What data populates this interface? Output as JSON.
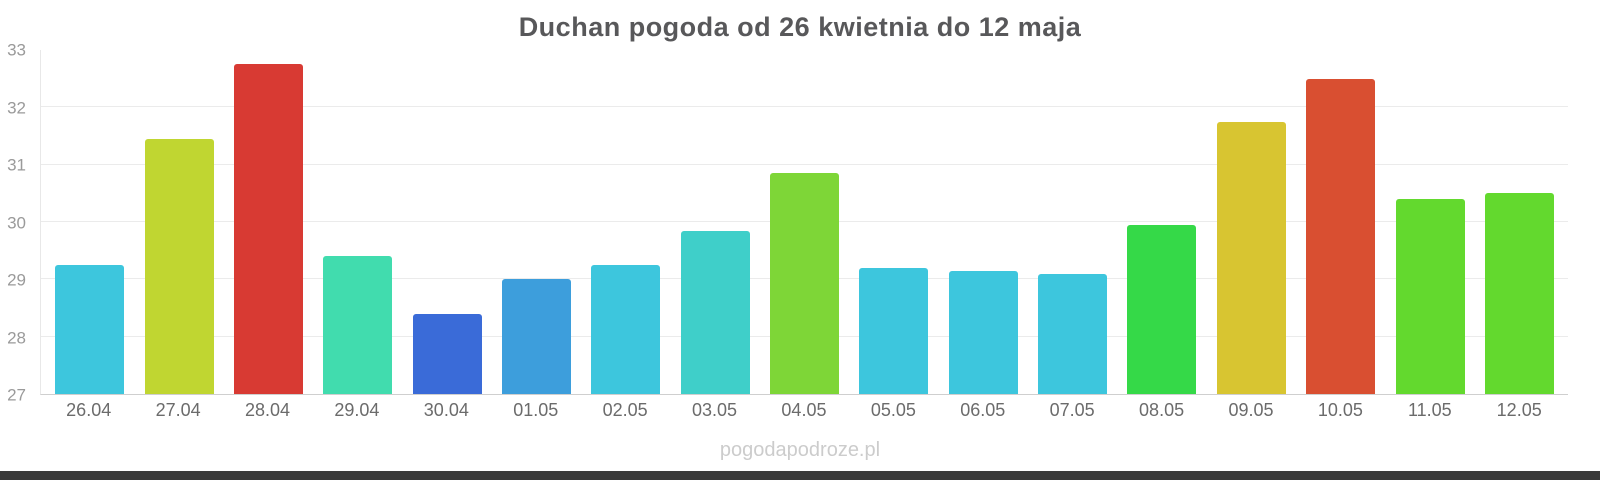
{
  "chart_data": {
    "type": "bar",
    "title": "Duchan pogoda od 26 kwietnia do 12 maja",
    "xlabel": "",
    "ylabel": "",
    "ylim": [
      27,
      33
    ],
    "yticks": [
      27,
      28,
      29,
      30,
      31,
      32,
      33
    ],
    "grid": true,
    "legend": false,
    "categories": [
      "26.04",
      "27.04",
      "28.04",
      "29.04",
      "30.04",
      "01.05",
      "02.05",
      "03.05",
      "04.05",
      "05.05",
      "06.05",
      "07.05",
      "08.05",
      "09.05",
      "10.05",
      "11.05",
      "12.05"
    ],
    "values": [
      29.25,
      31.45,
      32.75,
      29.4,
      28.4,
      29.0,
      29.25,
      29.85,
      30.85,
      29.2,
      29.15,
      29.1,
      29.95,
      31.75,
      32.5,
      30.4,
      30.5
    ],
    "colors": [
      "#3dc6dd",
      "#c0d631",
      "#d83a33",
      "#41dcae",
      "#3a6bd8",
      "#3d9edc",
      "#3dc6dd",
      "#3fcfc9",
      "#7ed637",
      "#3dc6dd",
      "#3dc6dd",
      "#3dc6dd",
      "#35d948",
      "#d8c531",
      "#d94f31",
      "#63d92e",
      "#63d92e"
    ]
  },
  "footer": {
    "watermark": "pogodapodroze.pl"
  }
}
